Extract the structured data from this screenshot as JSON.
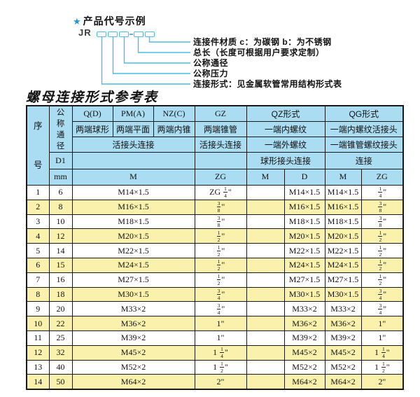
{
  "colors": {
    "header_blue": "#aadcf2",
    "row_yellow": "#faf2ac",
    "line_cyan": "#45bfe3",
    "star_blue": "#1f98d5",
    "border": "#1a1a1a"
  },
  "diagram": {
    "star": "★",
    "title": "产品代号示例",
    "code_prefix": "JR",
    "labels": [
      "连接件材质  c：为碳钢  b：为不锈钢",
      "总长（长度可根据用户要求定制）",
      "公称通径",
      "公称压力",
      "连接形式：见金属软管常用结构形式表"
    ]
  },
  "table": {
    "title": "螺母连接形式参考表",
    "header": {
      "seq": "序号",
      "dn": "公称通径",
      "d1": "D1",
      "mm": "mm",
      "q": "Q(D)",
      "pm": "PM(A)",
      "nz": "NZ(C)",
      "gz": "GZ",
      "qz": "QZ形式",
      "qg": "QG形式",
      "q_sub": "两端球形",
      "pm_sub": "两端平面",
      "nz_sub": "两端内锥",
      "gz_sub": "两端锥管",
      "qz_sub1": "一端内螺纹",
      "qg_sub1": "一端内螺纹活接头",
      "union1": "活接头连接",
      "union2": "活接头连接",
      "qz_sub2": "一端外螺纹",
      "qg_sub2": "一端锥管螺纹接头",
      "qz_conn": "球形接头连接",
      "qg_conn": "连接",
      "m": "M",
      "zg": "ZG",
      "qz_m": "M",
      "qz_d": "D",
      "qg_m": "M",
      "qg_zg": "ZG"
    },
    "rows": [
      {
        "no": "1",
        "dn": "6",
        "m": "M14×1.5",
        "gz": "ZG 1/4\"",
        "qzm": "",
        "qzd": "M14×1.5",
        "qgm": "M14×1.5",
        "qgzg": "1/4\""
      },
      {
        "no": "2",
        "dn": "8",
        "m": "M16×1.5",
        "gz": "3/8\"",
        "qzm": "",
        "qzd": "M16×1.5",
        "qgm": "M16×1.5",
        "qgzg": "3/8\""
      },
      {
        "no": "3",
        "dn": "10",
        "m": "M18×1.5",
        "gz": "3/8\"",
        "qzm": "",
        "qzd": "M18×1.5",
        "qgm": "M18×1.5",
        "qgzg": "3/8\""
      },
      {
        "no": "4",
        "dn": "12",
        "m": "M20×1.5",
        "gz": "1/2\"",
        "qzm": "",
        "qzd": "M20×1.5",
        "qgm": "M20×1.5",
        "qgzg": "1/2\""
      },
      {
        "no": "5",
        "dn": "14",
        "m": "M22×1.5",
        "gz": "1/2\"",
        "qzm": "",
        "qzd": "M22×1.5",
        "qgm": "M22×1.5",
        "qgzg": "1/2\""
      },
      {
        "no": "6",
        "dn": "15",
        "m": "M24×1.5",
        "gz": "1/2\"",
        "qzm": "",
        "qzd": "M24×1.5",
        "qgm": "M24×1.5",
        "qgzg": "1/2\""
      },
      {
        "no": "7",
        "dn": "16",
        "m": "M27×1.5",
        "gz": "1/2\"",
        "qzm": "",
        "qzd": "M27×1.5",
        "qgm": "M27×1.5",
        "qgzg": "1/2\""
      },
      {
        "no": "8",
        "dn": "18",
        "m": "M30×1.5",
        "gz": "3/4\"",
        "qzm": "",
        "qzd": "M30×1.5",
        "qgm": "M30×1.5",
        "qgzg": "3/4\""
      },
      {
        "no": "9",
        "dn": "20",
        "m": "M33×2",
        "gz": "3/4\"",
        "qzm": "",
        "qzd": "M33×2",
        "qgm": "M33×2",
        "qgzg": "3/4\""
      },
      {
        "no": "10",
        "dn": "22",
        "m": "M36×2",
        "gz": "1\"",
        "qzm": "",
        "qzd": "M36×2",
        "qgm": "M36×2",
        "qgzg": "1\""
      },
      {
        "no": "11",
        "dn": "25",
        "m": "M39×2",
        "gz": "1\"",
        "qzm": "",
        "qzd": "M39×2",
        "qgm": "M39×2",
        "qgzg": "1\""
      },
      {
        "no": "12",
        "dn": "32",
        "m": "M45×2",
        "gz": "1 1/4\"",
        "qzm": "",
        "qzd": "M45×2",
        "qgm": "M45×2",
        "qgzg": "1 1/4\""
      },
      {
        "no": "13",
        "dn": "40",
        "m": "M52×2",
        "gz": "1 1/2\"",
        "qzm": "",
        "qzd": "M52×2",
        "qgm": "M52×2",
        "qgzg": "1 1/2\""
      },
      {
        "no": "14",
        "dn": "50",
        "m": "M64×2",
        "gz": "2\"",
        "qzm": "",
        "qzd": "M64×2",
        "qgm": "M64×2",
        "qgzg": "2\""
      }
    ]
  }
}
